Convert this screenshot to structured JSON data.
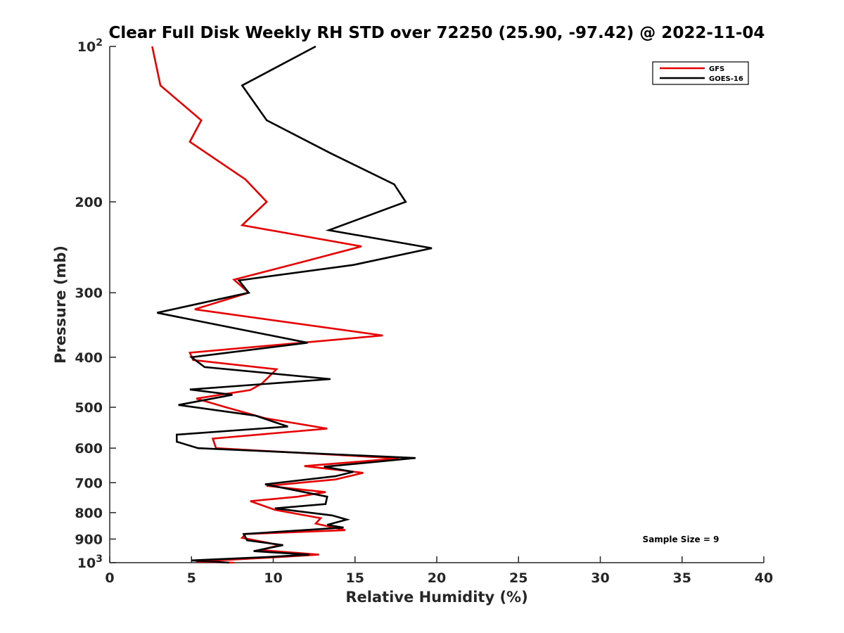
{
  "chart_data": {
    "type": "line",
    "title": "Clear Full Disk Weekly RH STD over 72250 (25.90, -97.42) @ 2022-11-04",
    "xlabel": "Relative Humidity (%)",
    "ylabel": "Pressure (mb)",
    "xlim": [
      0,
      40
    ],
    "ylim": [
      100,
      1000
    ],
    "y_scale": "log",
    "y_reversed": true,
    "grid": false,
    "legend_position": "top-right",
    "x_ticks": [
      "0",
      "5",
      "10",
      "15",
      "20",
      "25",
      "30",
      "35",
      "40"
    ],
    "y_ticks": [
      {
        "value": 100,
        "label": "10",
        "sup": "2"
      },
      {
        "value": 200,
        "label": "200",
        "sup": ""
      },
      {
        "value": 300,
        "label": "300",
        "sup": ""
      },
      {
        "value": 400,
        "label": "400",
        "sup": ""
      },
      {
        "value": 500,
        "label": "500",
        "sup": ""
      },
      {
        "value": 600,
        "label": "600",
        "sup": ""
      },
      {
        "value": 700,
        "label": "700",
        "sup": ""
      },
      {
        "value": 800,
        "label": "800",
        "sup": ""
      },
      {
        "value": 900,
        "label": "900",
        "sup": ""
      },
      {
        "value": 1000,
        "label": "10",
        "sup": "3"
      }
    ],
    "annotation": "Sample Size = 9",
    "series": [
      {
        "name": "GFS",
        "color": "#e60000",
        "points": [
          [
            2.6,
            100
          ],
          [
            3.1,
            119
          ],
          [
            5.6,
            139
          ],
          [
            4.9,
            153
          ],
          [
            8.3,
            181
          ],
          [
            9.6,
            200
          ],
          [
            8.1,
            222
          ],
          [
            15.4,
            244
          ],
          [
            11.9,
            261
          ],
          [
            7.6,
            283
          ],
          [
            8.5,
            300
          ],
          [
            5.2,
            323
          ],
          [
            16.7,
            363
          ],
          [
            4.9,
            392
          ],
          [
            5.1,
            405
          ],
          [
            10.2,
            422
          ],
          [
            9.3,
            450
          ],
          [
            8.6,
            463
          ],
          [
            5.3,
            481
          ],
          [
            7.1,
            500
          ],
          [
            9.5,
            525
          ],
          [
            13.3,
            550
          ],
          [
            6.3,
            575
          ],
          [
            6.5,
            600
          ],
          [
            17.7,
            628
          ],
          [
            11.9,
            650
          ],
          [
            15.5,
            670
          ],
          [
            13.8,
            690
          ],
          [
            9.6,
            710
          ],
          [
            13.2,
            730
          ],
          [
            11.5,
            745
          ],
          [
            8.6,
            760
          ],
          [
            10.1,
            790
          ],
          [
            12.9,
            820
          ],
          [
            12.6,
            840
          ],
          [
            14.4,
            865
          ],
          [
            8.3,
            880
          ],
          [
            8.1,
            895
          ],
          [
            10.4,
            925
          ],
          [
            9.2,
            945
          ],
          [
            12.8,
            965
          ],
          [
            10.4,
            975
          ],
          [
            5.3,
            995
          ],
          [
            7.6,
            1000
          ]
        ]
      },
      {
        "name": "GOES-16",
        "color": "#000000",
        "points": [
          [
            12.6,
            100
          ],
          [
            8.1,
            119
          ],
          [
            9.6,
            139
          ],
          [
            13.5,
            161
          ],
          [
            17.4,
            185
          ],
          [
            18.1,
            200
          ],
          [
            13.4,
            227
          ],
          [
            19.7,
            246
          ],
          [
            14.9,
            265
          ],
          [
            7.9,
            284
          ],
          [
            8.5,
            300
          ],
          [
            2.9,
            328
          ],
          [
            12.1,
            375
          ],
          [
            9.2,
            385
          ],
          [
            5.0,
            400
          ],
          [
            5.8,
            418
          ],
          [
            13.5,
            441
          ],
          [
            4.9,
            462
          ],
          [
            7.5,
            473
          ],
          [
            4.2,
            495
          ],
          [
            8.9,
            519
          ],
          [
            10.9,
            545
          ],
          [
            4.1,
            565
          ],
          [
            4.1,
            583
          ],
          [
            5.4,
            600
          ],
          [
            18.7,
            627
          ],
          [
            13.1,
            652
          ],
          [
            14.9,
            667
          ],
          [
            13.8,
            680
          ],
          [
            9.5,
            705
          ],
          [
            11.9,
            730
          ],
          [
            13.3,
            745
          ],
          [
            13.2,
            770
          ],
          [
            10.1,
            785
          ],
          [
            13.6,
            810
          ],
          [
            14.5,
            825
          ],
          [
            13.3,
            845
          ],
          [
            14.3,
            855
          ],
          [
            8.2,
            880
          ],
          [
            8.4,
            905
          ],
          [
            10.6,
            925
          ],
          [
            8.8,
            950
          ],
          [
            12.2,
            965
          ],
          [
            9.7,
            975
          ],
          [
            5.0,
            990
          ],
          [
            7.3,
            1000
          ]
        ]
      }
    ]
  }
}
